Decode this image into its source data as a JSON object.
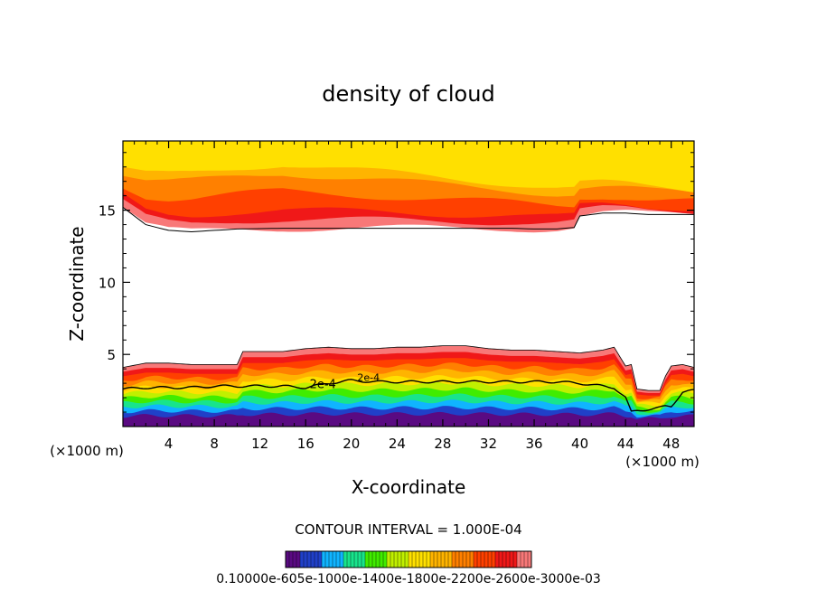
{
  "chart_data": {
    "type": "contour",
    "title": "density of cloud",
    "xlabel": "X-coordinate",
    "ylabel": "Z-coordinate",
    "x_unit": "(×1000 m)",
    "xlim": [
      0,
      50
    ],
    "ylim": [
      0,
      19.8
    ],
    "xticks": [
      4,
      8,
      12,
      16,
      20,
      24,
      28,
      32,
      36,
      40,
      44,
      48
    ],
    "xtick_labels": [
      "4",
      "8",
      "12",
      "16",
      "20",
      "24",
      "28",
      "32",
      "36",
      "40",
      "44",
      "48"
    ],
    "yticks": [
      5,
      10,
      15
    ],
    "ytick_labels": [
      "5",
      "10",
      "15"
    ],
    "contour_interval_text": "CONTOUR INTERVAL = 1.000E-04",
    "contour_line_label": "2e-4",
    "colorbar_label_text": "0.10000e-605e-1000e-1400e-1800e-2200e-2600e-3000e-03",
    "colors": {
      "cmap": [
        "#5a0a82",
        "#2040c8",
        "#10b4ff",
        "#18e48c",
        "#40ec00",
        "#c0f000",
        "#ffe000",
        "#ffb400",
        "#ff8000",
        "#ff4000",
        "#f01818",
        "#f87878",
        "#ffffff"
      ]
    },
    "upper_layer": {
      "description_none": "",
      "x": [
        0,
        2,
        4,
        6,
        8,
        10,
        14,
        18,
        22,
        26,
        30,
        34,
        36,
        38,
        39.5,
        40,
        42,
        44,
        46,
        48,
        50
      ],
      "bottom": [
        15.2,
        14.0,
        13.6,
        13.5,
        13.6,
        13.7,
        13.75,
        13.75,
        13.75,
        13.75,
        13.75,
        13.75,
        13.7,
        13.7,
        13.8,
        14.6,
        14.8,
        14.8,
        14.7,
        14.7,
        14.7
      ],
      "peak_x": 14,
      "peak_z": 19.5
    },
    "lower_layer": {
      "x": [
        0,
        2,
        4,
        6,
        8,
        10,
        10.5,
        12,
        14,
        16,
        18,
        20,
        22,
        24,
        26,
        28,
        30,
        32,
        34,
        36,
        38,
        40,
        42,
        43,
        44,
        44.5,
        45,
        46,
        47,
        47.5,
        48,
        49,
        50
      ],
      "top": [
        4.1,
        4.4,
        4.4,
        4.3,
        4.3,
        4.3,
        5.2,
        5.2,
        5.2,
        5.4,
        5.5,
        5.4,
        5.4,
        5.5,
        5.5,
        5.6,
        5.6,
        5.4,
        5.3,
        5.3,
        5.2,
        5.1,
        5.3,
        5.5,
        4.2,
        4.3,
        2.6,
        2.5,
        2.5,
        3.5,
        4.2,
        4.3,
        4.1
      ],
      "contour_2e4": [
        2.6,
        2.7,
        2.7,
        2.7,
        2.8,
        2.8,
        2.8,
        2.8,
        2.8,
        2.7,
        3.0,
        3.2,
        3.1,
        3.1,
        3.1,
        3.1,
        3.1,
        3.1,
        3.1,
        3.1,
        3.1,
        3.0,
        2.8,
        2.7,
        2.0,
        1.0,
        1.1,
        1.2,
        1.3,
        1.4,
        1.4,
        2.4,
        2.5
      ],
      "bottom": [
        0.3,
        0.3,
        0.3,
        0.3,
        0.3,
        0.3,
        0.3,
        0.3,
        0.3,
        0.3,
        0.3,
        0.3,
        0.3,
        0.3,
        0.3,
        0.3,
        0.3,
        0.3,
        0.3,
        0.3,
        0.3,
        0.3,
        0.3,
        0.3,
        0.3,
        0.3,
        0.3,
        0.3,
        0.3,
        0.3,
        0.3,
        0.3,
        0.3
      ]
    }
  }
}
